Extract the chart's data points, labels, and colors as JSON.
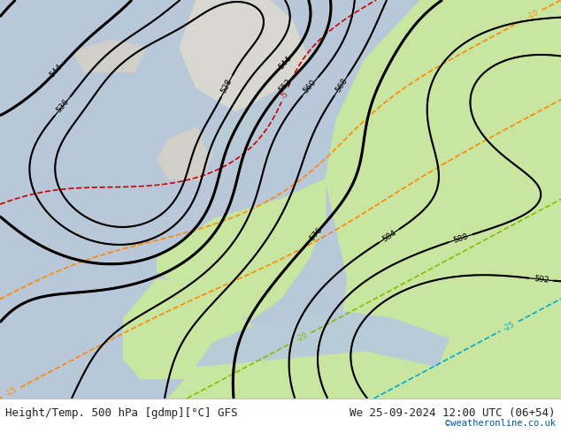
{
  "title_left": "Height/Temp. 500 hPa [gdmp][°C] GFS",
  "title_right": "We 25-09-2024 12:00 UTC (06+54)",
  "credit": "©weatheronline.co.uk",
  "fig_width": 6.34,
  "fig_height": 4.9,
  "dpi": 100,
  "bg_color_ocean": "#d0d8e8",
  "bg_color_land_warm": "#c8e6a0",
  "bg_color_land_neutral": "#e8e8e8",
  "text_color": "#222222",
  "credit_color": "#0055aa",
  "bottom_bar_color": "#ffffff",
  "geopotential_color": "#000000",
  "temp_warm_color": "#ff8800",
  "temp_cold_color": "#00aacc",
  "temp_verywarm_color": "#cc0000",
  "temp_mild_color": "#88cc00",
  "bold_contours": [
    544,
    552,
    576
  ],
  "title_fontsize": 9,
  "label_fontsize": 7
}
